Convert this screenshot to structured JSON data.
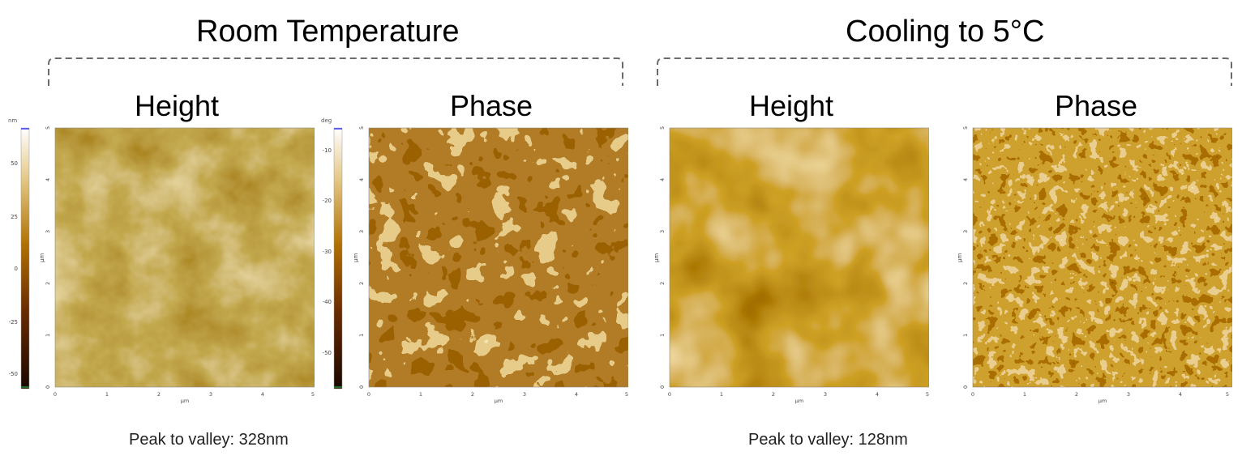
{
  "sections": [
    {
      "title": "Room Temperature",
      "peak_to_valley": "Peak to valley: 328nm",
      "panels": [
        {
          "label": "Height",
          "type": "height"
        },
        {
          "label": "Phase",
          "type": "phase"
        }
      ]
    },
    {
      "title": "Cooling to 5°C",
      "peak_to_valley": "Peak to valley: 128nm",
      "panels": [
        {
          "label": "Height",
          "type": "height"
        },
        {
          "label": "Phase",
          "type": "phase"
        }
      ]
    }
  ],
  "axes": {
    "unit": "µm",
    "ticks": [
      "0",
      "1",
      "2",
      "3",
      "4",
      "5"
    ]
  },
  "colorbars": {
    "height": {
      "unit": "nm",
      "ticks": [
        "50",
        "25",
        "0",
        "-25",
        "-50"
      ]
    },
    "phase": {
      "unit": "deg",
      "ticks": [
        "-10",
        "-20",
        "-30",
        "-40",
        "-50"
      ]
    }
  },
  "colors": {
    "afm_dark": "#2a0d00",
    "afm_mid": "#b06f00",
    "afm_light": "#f2e6b8",
    "bracket": "#6a6a6a"
  }
}
